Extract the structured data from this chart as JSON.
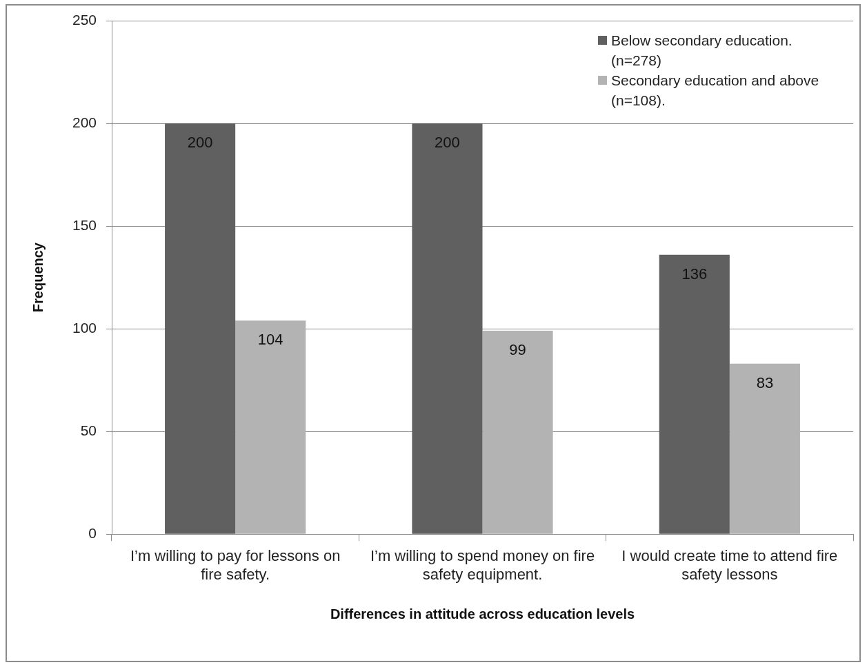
{
  "chart_data": {
    "type": "bar",
    "xlabel": "Differences in attitude across education levels",
    "ylabel": "Frequency",
    "categories": [
      "I’m willing to pay for lessons on fire safety.",
      "I’m willing to spend money on fire safety equipment.",
      "I would create time to attend fire safety lessons"
    ],
    "series": [
      {
        "name": "Below secondary education. (n=278)",
        "color": "#606060",
        "values": [
          200,
          200,
          136
        ]
      },
      {
        "name": "Secondary education and above (n=108).",
        "color": "#b3b3b3",
        "values": [
          104,
          99,
          83
        ]
      }
    ],
    "ylim": [
      0,
      250
    ],
    "yticks": [
      0,
      50,
      100,
      150,
      200,
      250
    ],
    "grid": "y",
    "legend": "top right",
    "data_labels": true
  }
}
